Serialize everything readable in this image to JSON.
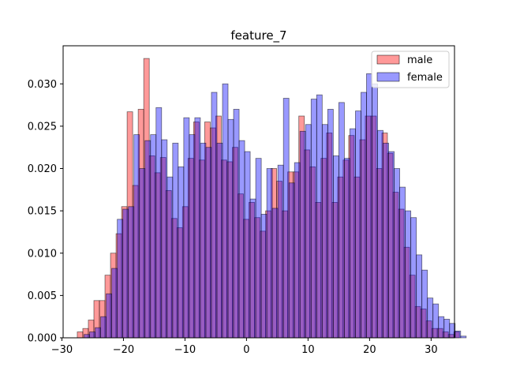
{
  "chart_data": {
    "type": "bar",
    "subtype": "histogram",
    "title": "feature_7",
    "xlabel": "",
    "ylabel": "",
    "xlim": [
      -29.8,
      33.8
    ],
    "ylim": [
      0,
      0.0345
    ],
    "grid": false,
    "legend_position": "top-right",
    "bin_width": 0.9,
    "x_ticks": [
      -30,
      -20,
      -10,
      0,
      10,
      20,
      30
    ],
    "x_tick_labels": [
      "−30",
      "−20",
      "−10",
      "0",
      "10",
      "20",
      "30"
    ],
    "y_ticks": [
      0.0,
      0.005,
      0.01,
      0.015,
      0.02,
      0.025,
      0.03
    ],
    "y_tick_labels": [
      "0.000",
      "0.005",
      "0.010",
      "0.015",
      "0.020",
      "0.025",
      "0.030"
    ],
    "series": [
      {
        "name": "male",
        "color": "#ff0000",
        "opacity": 0.4,
        "start": -27.5,
        "values": [
          0.0007,
          0.0011,
          0.0021,
          0.0044,
          0.0044,
          0.0074,
          0.01,
          0.0123,
          0.0155,
          0.0267,
          0.018,
          0.027,
          0.033,
          0.0215,
          0.0195,
          0.0213,
          0.0174,
          0.0141,
          0.013,
          0.0155,
          0.0212,
          0.0255,
          0.021,
          0.0255,
          0.0248,
          0.0262,
          0.021,
          0.0208,
          0.0225,
          0.017,
          0.014,
          0.016,
          0.0142,
          0.0126,
          0.015,
          0.02,
          0.0185,
          0.015,
          0.0196,
          0.0196,
          0.0262,
          0.0222,
          0.0202,
          0.016,
          0.0212,
          0.0242,
          0.016,
          0.019,
          0.021,
          0.0239,
          0.019,
          0.0234,
          0.0262,
          0.0262,
          0.02,
          0.0242,
          0.0218,
          0.0172,
          0.0152,
          0.0107,
          0.0074,
          0.0037,
          0.0034,
          0.002,
          0.0011,
          0.0011,
          0.0007,
          0.0004,
          0.0007
        ],
        "value_labels": []
      },
      {
        "name": "female",
        "color": "#0000ff",
        "opacity": 0.4,
        "start": -26.4,
        "values": [
          0.0004,
          0.0007,
          0.0012,
          0.0025,
          0.0052,
          0.0082,
          0.014,
          0.0152,
          0.0155,
          0.024,
          0.02,
          0.0233,
          0.024,
          0.0272,
          0.0234,
          0.019,
          0.023,
          0.0202,
          0.026,
          0.024,
          0.026,
          0.023,
          0.0225,
          0.029,
          0.023,
          0.03,
          0.0258,
          0.027,
          0.0233,
          0.022,
          0.0164,
          0.0212,
          0.0146,
          0.02,
          0.0153,
          0.0204,
          0.0283,
          0.0183,
          0.0207,
          0.0244,
          0.0252,
          0.0282,
          0.0287,
          0.0252,
          0.027,
          0.0215,
          0.0278,
          0.0212,
          0.0247,
          0.0268,
          0.029,
          0.0312,
          0.03,
          0.0245,
          0.023,
          0.022,
          0.02,
          0.0178,
          0.015,
          0.0142,
          0.0098,
          0.008,
          0.0047,
          0.004,
          0.0025,
          0.0022,
          0.0017,
          0.0008,
          0.0002
        ],
        "value_labels": []
      }
    ]
  }
}
